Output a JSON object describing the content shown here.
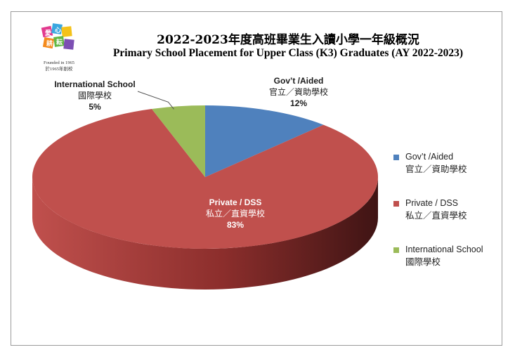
{
  "logo": {
    "sub1": "Founded in 1965",
    "sub2": "於1965年創校"
  },
  "chart_data": {
    "type": "pie",
    "title": "2022-2023年度高班畢業生入讀小學一年級概況",
    "subtitle": "Primary School Placement for Upper Class (K3) Graduates (AY 2022-2023)",
    "categories": [
      "Gov't /Aided 官立／資助學校",
      "Private / DSS 私立／直資學校",
      "International School 國際學校"
    ],
    "values": [
      12,
      83,
      5
    ],
    "legend_position": "right",
    "slices": [
      {
        "label_en": "Gov’t /Aided",
        "label_zh": "官立／資助學校",
        "percent_label": "12%",
        "value": 12,
        "color": "#4f81bd",
        "side": "#365d8f"
      },
      {
        "label_en": "Private / DSS",
        "label_zh": "私立／直資學校",
        "percent_label": "83%",
        "value": 83,
        "color": "#c0504d",
        "side": "#8c2e2c"
      },
      {
        "label_en": "International School",
        "label_zh": "國際學校",
        "percent_label": "5%",
        "value": 5,
        "color": "#9bbb59",
        "side": "#6f8a3c"
      }
    ]
  }
}
